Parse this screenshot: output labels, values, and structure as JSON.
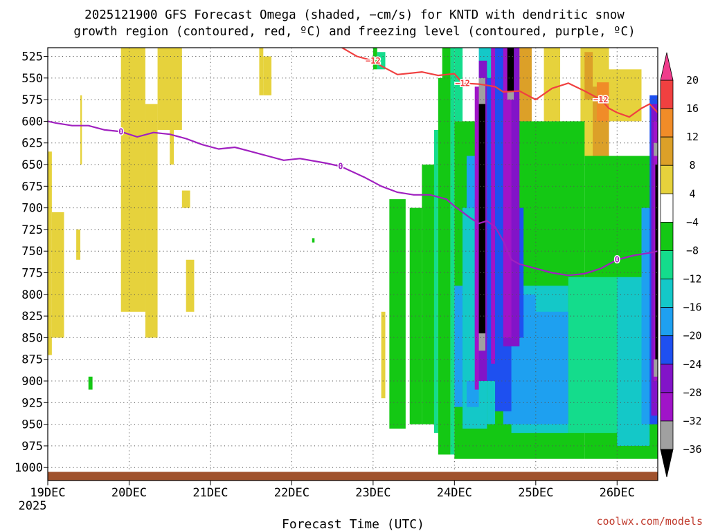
{
  "chart_data": {
    "type": "time-height",
    "title_lines": [
      "2025121900 GFS Forecast Omega (shaded, −cm/s) for KNTD with dendritic snow",
      "growth region (contoured, red, ºC) and freezing level (contoured, purple, ºC)"
    ],
    "xlabel": "Forecast Time (UTC)",
    "x_ticks": [
      "19DEC",
      "20DEC",
      "21DEC",
      "22DEC",
      "23DEC",
      "24DEC",
      "25DEC",
      "26DEC"
    ],
    "x_year": "2025",
    "y_ticks": [
      525,
      550,
      575,
      600,
      625,
      650,
      675,
      700,
      725,
      750,
      775,
      800,
      825,
      850,
      875,
      900,
      925,
      950,
      975,
      1000
    ],
    "xlim": [
      0,
      7.5
    ],
    "ylim_hpa": [
      1015,
      515
    ],
    "grid": "dotted",
    "credit": "coolwx.com/models",
    "colorbar": {
      "labels": [
        "20",
        "16",
        "12",
        "8",
        "4",
        "−4",
        "−8",
        "−12",
        "−16",
        "−20",
        "−24",
        "−28",
        "−32",
        "−36"
      ],
      "colors": [
        "#f03c8c",
        "#f04040",
        "#f08c28",
        "#dca028",
        "#e6d23c",
        "#ffffff",
        "#14c814",
        "#14dc8c",
        "#14c8c8",
        "#1ea0f0",
        "#1e50f0",
        "#8214c8",
        "#a014c8",
        "#a0a0a0",
        "#000000"
      ]
    },
    "freezing_level": {
      "label": "0",
      "color": "#a020c0",
      "points": [
        [
          0.0,
          600
        ],
        [
          0.1,
          602
        ],
        [
          0.3,
          605
        ],
        [
          0.5,
          605
        ],
        [
          0.7,
          610
        ],
        [
          0.9,
          612
        ],
        [
          1.1,
          618
        ],
        [
          1.3,
          613
        ],
        [
          1.5,
          615
        ],
        [
          1.7,
          620
        ],
        [
          1.9,
          627
        ],
        [
          2.1,
          632
        ],
        [
          2.3,
          630
        ],
        [
          2.5,
          635
        ],
        [
          2.7,
          640
        ],
        [
          2.9,
          645
        ],
        [
          3.1,
          643
        ],
        [
          3.4,
          648
        ],
        [
          3.6,
          652
        ],
        [
          3.9,
          665
        ],
        [
          4.1,
          675
        ],
        [
          4.3,
          682
        ],
        [
          4.5,
          685
        ],
        [
          4.7,
          685
        ],
        [
          4.9,
          690
        ],
        [
          5.0,
          698
        ],
        [
          5.1,
          705
        ],
        [
          5.2,
          712
        ],
        [
          5.3,
          718
        ],
        [
          5.4,
          715
        ],
        [
          5.5,
          722
        ],
        [
          5.6,
          738
        ],
        [
          5.7,
          760
        ],
        [
          5.8,
          765
        ],
        [
          6.0,
          770
        ],
        [
          6.2,
          775
        ],
        [
          6.4,
          778
        ],
        [
          6.6,
          776
        ],
        [
          6.8,
          770
        ],
        [
          7.0,
          760
        ],
        [
          7.2,
          755
        ],
        [
          7.4,
          752
        ],
        [
          7.5,
          750
        ]
      ]
    },
    "dgz_contour": {
      "label": "−12",
      "color": "#f04040",
      "points": [
        [
          3.6,
          514
        ],
        [
          3.8,
          525
        ],
        [
          4.0,
          530
        ],
        [
          4.1,
          536
        ],
        [
          4.3,
          546
        ],
        [
          4.6,
          543
        ],
        [
          4.8,
          547
        ],
        [
          5.0,
          545
        ],
        [
          5.1,
          556
        ],
        [
          5.3,
          557
        ],
        [
          5.5,
          560
        ],
        [
          5.6,
          566
        ],
        [
          5.8,
          565
        ],
        [
          6.0,
          575
        ],
        [
          6.2,
          562
        ],
        [
          6.4,
          556
        ],
        [
          6.6,
          565
        ],
        [
          6.8,
          575
        ],
        [
          6.9,
          585
        ],
        [
          7.0,
          590
        ],
        [
          7.15,
          595
        ],
        [
          7.3,
          585
        ],
        [
          7.4,
          580
        ],
        [
          7.5,
          590
        ]
      ]
    },
    "omega_cells": [
      {
        "x": [
          0.0,
          0.05
        ],
        "p": [
          635,
          870
        ],
        "c": 4
      },
      {
        "x": [
          0.05,
          0.2
        ],
        "p": [
          705,
          850
        ],
        "c": 4
      },
      {
        "x": [
          0.35,
          0.4
        ],
        "p": [
          725,
          760
        ],
        "c": 4
      },
      {
        "x": [
          0.4,
          0.42
        ],
        "p": [
          570,
          650
        ],
        "c": 4
      },
      {
        "x": [
          0.95,
          1.0
        ],
        "p": [
          785,
          810
        ],
        "c": 4
      },
      {
        "x": [
          0.9,
          1.2
        ],
        "p": [
          515,
          820
        ],
        "c": 4
      },
      {
        "x": [
          1.2,
          1.35
        ],
        "p": [
          580,
          850
        ],
        "c": 4
      },
      {
        "x": [
          1.5,
          1.55
        ],
        "p": [
          515,
          650
        ],
        "c": 4
      },
      {
        "x": [
          1.35,
          1.65
        ],
        "p": [
          515,
          610
        ],
        "c": 4
      },
      {
        "x": [
          1.65,
          1.75
        ],
        "p": [
          680,
          700
        ],
        "c": 4
      },
      {
        "x": [
          1.7,
          1.8
        ],
        "p": [
          760,
          820
        ],
        "c": 4
      },
      {
        "x": [
          2.6,
          2.65
        ],
        "p": [
          515,
          570
        ],
        "c": 4
      },
      {
        "x": [
          2.65,
          2.75
        ],
        "p": [
          525,
          570
        ],
        "c": 4
      },
      {
        "x": [
          4.1,
          4.15
        ],
        "p": [
          820,
          920
        ],
        "c": 4
      },
      {
        "x": [
          5.8,
          5.95
        ],
        "p": [
          515,
          620
        ],
        "c": 3
      },
      {
        "x": [
          6.1,
          6.3
        ],
        "p": [
          515,
          600
        ],
        "c": 4
      },
      {
        "x": [
          6.55,
          6.9
        ],
        "p": [
          515,
          640
        ],
        "c": 4
      },
      {
        "x": [
          6.6,
          6.7
        ],
        "p": [
          520,
          575
        ],
        "c": 3
      },
      {
        "x": [
          6.7,
          6.9
        ],
        "p": [
          560,
          645
        ],
        "c": 3
      },
      {
        "x": [
          6.75,
          6.9
        ],
        "p": [
          555,
          600
        ],
        "c": 2
      },
      {
        "x": [
          6.9,
          7.3
        ],
        "p": [
          540,
          600
        ],
        "c": 4
      },
      {
        "x": [
          0.5,
          0.55
        ],
        "p": [
          895,
          910
        ],
        "c": 6
      },
      {
        "x": [
          3.25,
          3.28
        ],
        "p": [
          735,
          740
        ],
        "c": 6
      },
      {
        "x": [
          4.0,
          4.05
        ],
        "p": [
          515,
          540
        ],
        "c": 6
      },
      {
        "x": [
          4.05,
          4.15
        ],
        "p": [
          520,
          540
        ],
        "c": 7
      },
      {
        "x": [
          4.2,
          4.4
        ],
        "p": [
          690,
          955
        ],
        "c": 6
      },
      {
        "x": [
          4.45,
          4.6
        ],
        "p": [
          700,
          950
        ],
        "c": 6
      },
      {
        "x": [
          4.6,
          4.75
        ],
        "p": [
          650,
          950
        ],
        "c": 6
      },
      {
        "x": [
          4.75,
          4.8
        ],
        "p": [
          610,
          960
        ],
        "c": 7
      },
      {
        "x": [
          4.8,
          4.95
        ],
        "p": [
          550,
          985
        ],
        "c": 6
      },
      {
        "x": [
          4.85,
          4.95
        ],
        "p": [
          515,
          590
        ],
        "c": 6
      },
      {
        "x": [
          4.95,
          5.0
        ],
        "p": [
          515,
          985
        ],
        "c": 7
      },
      {
        "x": [
          5.0,
          6.6
        ],
        "p": [
          600,
          990
        ],
        "c": 6
      },
      {
        "x": [
          6.6,
          7.5
        ],
        "p": [
          640,
          990
        ],
        "c": 6
      },
      {
        "x": [
          5.0,
          5.1
        ],
        "p": [
          515,
          600
        ],
        "c": 7
      },
      {
        "x": [
          5.1,
          5.4
        ],
        "p": [
          700,
          955
        ],
        "c": 8
      },
      {
        "x": [
          5.4,
          5.5
        ],
        "p": [
          690,
          950
        ],
        "c": 8
      },
      {
        "x": [
          5.7,
          6.4
        ],
        "p": [
          790,
          960
        ],
        "c": 8
      },
      {
        "x": [
          5.8,
          6.5
        ],
        "p": [
          700,
          770
        ],
        "c": 6
      },
      {
        "x": [
          6.4,
          7.0
        ],
        "p": [
          780,
          960
        ],
        "c": 7
      },
      {
        "x": [
          7.0,
          7.4
        ],
        "p": [
          780,
          975
        ],
        "c": 8
      },
      {
        "x": [
          5.15,
          5.3
        ],
        "p": [
          640,
          930
        ],
        "c": 9
      },
      {
        "x": [
          5.3,
          5.5
        ],
        "p": [
          560,
          900
        ],
        "c": 9
      },
      {
        "x": [
          5.5,
          5.7
        ],
        "p": [
          515,
          880
        ],
        "c": 9
      },
      {
        "x": [
          5.0,
          5.1
        ],
        "p": [
          790,
          930
        ],
        "c": 9
      },
      {
        "x": [
          5.6,
          6.0
        ],
        "p": [
          800,
          950
        ],
        "c": 9
      },
      {
        "x": [
          6.0,
          6.4
        ],
        "p": [
          820,
          950
        ],
        "c": 9
      },
      {
        "x": [
          7.3,
          7.45
        ],
        "p": [
          700,
          950
        ],
        "c": 9
      },
      {
        "x": [
          5.1,
          5.25
        ],
        "p": [
          700,
          900
        ],
        "c": 8
      },
      {
        "x": [
          5.3,
          5.5
        ],
        "p": [
          515,
          560
        ],
        "c": 8
      },
      {
        "x": [
          5.25,
          5.4
        ],
        "p": [
          690,
          850
        ],
        "c": 10
      },
      {
        "x": [
          5.4,
          5.55
        ],
        "p": [
          550,
          900
        ],
        "c": 10
      },
      {
        "x": [
          5.5,
          5.7
        ],
        "p": [
          515,
          935
        ],
        "c": 10
      },
      {
        "x": [
          5.75,
          5.85
        ],
        "p": [
          700,
          850
        ],
        "c": 10
      },
      {
        "x": [
          7.4,
          7.5
        ],
        "p": [
          570,
          950
        ],
        "c": 10
      },
      {
        "x": [
          5.3,
          5.4
        ],
        "p": [
          530,
          900
        ],
        "c": 11
      },
      {
        "x": [
          5.6,
          5.8
        ],
        "p": [
          515,
          860
        ],
        "c": 11
      },
      {
        "x": [
          7.42,
          7.5
        ],
        "p": [
          580,
          940
        ],
        "c": 11
      },
      {
        "x": [
          5.25,
          5.3
        ],
        "p": [
          560,
          910
        ],
        "c": 12
      },
      {
        "x": [
          5.45,
          5.5
        ],
        "p": [
          515,
          880
        ],
        "c": 12
      },
      {
        "x": [
          5.6,
          5.7
        ],
        "p": [
          515,
          850
        ],
        "c": 12
      },
      {
        "x": [
          7.45,
          7.5
        ],
        "p": [
          600,
          900
        ],
        "c": 12
      },
      {
        "x": [
          5.3,
          5.38
        ],
        "p": [
          550,
          865
        ],
        "c": 13
      },
      {
        "x": [
          5.65,
          5.73
        ],
        "p": [
          565,
          575
        ],
        "c": 13
      },
      {
        "x": [
          7.45,
          7.5
        ],
        "p": [
          625,
          640
        ],
        "c": 13
      },
      {
        "x": [
          7.45,
          7.5
        ],
        "p": [
          875,
          895
        ],
        "c": 13
      },
      {
        "x": [
          5.3,
          5.38
        ],
        "p": [
          580,
          845
        ],
        "c": 14
      },
      {
        "x": [
          5.65,
          5.73
        ],
        "p": [
          515,
          565
        ],
        "c": 14
      },
      {
        "x": [
          7.47,
          7.5
        ],
        "p": [
          650,
          875
        ],
        "c": 14
      }
    ],
    "terrain": {
      "color": "#a0522d",
      "p_top": 1005,
      "p_bottom": 1015
    }
  }
}
